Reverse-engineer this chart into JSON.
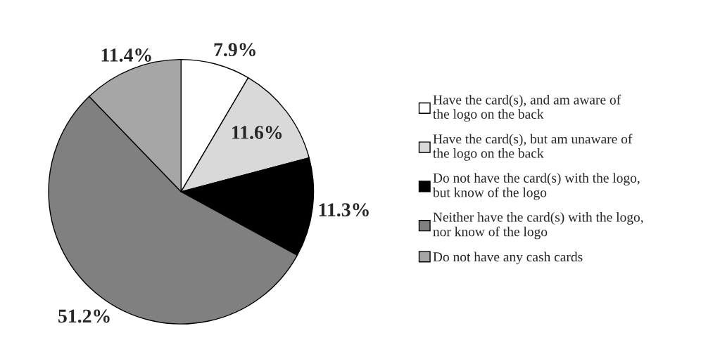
{
  "chart_data": {
    "type": "pie",
    "categories": [
      "Have the card(s), and am aware of\nthe logo on the back",
      "Have the card(s), but am unaware of\nthe logo on the back",
      "Do not have the card(s) with the logo,\nbut know of the logo",
      "Neither have the card(s) with the logo,\nnor know of the logo",
      "Do not have any cash cards"
    ],
    "values": [
      7.9,
      11.6,
      11.3,
      51.2,
      11.4
    ],
    "value_labels": [
      "7.9%",
      "11.6%",
      "11.3%",
      "51.2%",
      "11.4%"
    ],
    "colors": [
      "#ffffff",
      "#d9d9d9",
      "#000000",
      "#808080",
      "#a6a6a6"
    ],
    "legend": "right"
  }
}
